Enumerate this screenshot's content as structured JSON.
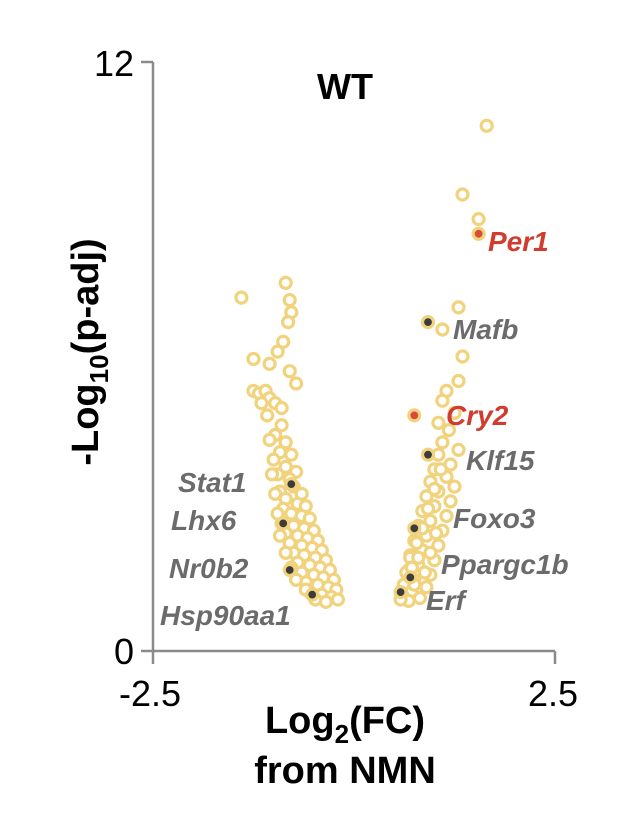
{
  "chart_data": {
    "type": "scatter",
    "title": "WT",
    "xlabel": {
      "main": "Log",
      "sub": "2",
      "suffix": "(FC)",
      "line2": "from NMN"
    },
    "ylabel": {
      "prefix": "-Log",
      "sub": "10",
      "suffix": "(p-adj)"
    },
    "xlim": [
      -2.5,
      2.5
    ],
    "ylim": [
      0,
      12
    ],
    "x_tick_labels": [
      "-2.5",
      "2.5"
    ],
    "y_tick_labels": [
      "0",
      "12"
    ],
    "grid": false,
    "colors": {
      "point_fill": "#ffffff",
      "point_stroke": "#f1d27d",
      "highlight_fill": "#3c3c3c",
      "highlight_red": "#d84a3a",
      "label_gray": "#6b6b6b",
      "label_red": "#d03c2f",
      "axis": "#8a8a8a"
    },
    "background_points": [
      [
        -1.4,
        7.2
      ],
      [
        -0.85,
        7.5
      ],
      [
        -0.8,
        7.15
      ],
      [
        -0.78,
        6.9
      ],
      [
        -0.82,
        6.7
      ],
      [
        -0.88,
        6.3
      ],
      [
        -0.95,
        6.1
      ],
      [
        -1.25,
        5.95
      ],
      [
        -1.05,
        5.85
      ],
      [
        -0.8,
        5.7
      ],
      [
        -0.72,
        5.45
      ],
      [
        -1.25,
        5.3
      ],
      [
        -1.18,
        5.25
      ],
      [
        -1.1,
        5.3
      ],
      [
        -1.05,
        5.15
      ],
      [
        -0.98,
        5.05
      ],
      [
        -0.9,
        4.95
      ],
      [
        -1.15,
        5.05
      ],
      [
        -1.08,
        4.8
      ],
      [
        -0.9,
        4.6
      ],
      [
        -0.98,
        4.4
      ],
      [
        -1.05,
        4.3
      ],
      [
        -0.85,
        4.25
      ],
      [
        -0.92,
        4.05
      ],
      [
        -0.78,
        4.0
      ],
      [
        -1.0,
        3.9
      ],
      [
        -0.85,
        3.75
      ],
      [
        -0.72,
        3.65
      ],
      [
        -0.95,
        3.6
      ],
      [
        -0.8,
        3.5
      ],
      [
        -0.75,
        3.35
      ],
      [
        -0.92,
        3.25
      ],
      [
        -0.65,
        3.2
      ],
      [
        -0.85,
        3.1
      ],
      [
        -0.7,
        3.0
      ],
      [
        -0.6,
        2.95
      ],
      [
        -0.88,
        2.9
      ],
      [
        -0.78,
        2.8
      ],
      [
        -0.65,
        2.75
      ],
      [
        -0.55,
        2.7
      ],
      [
        -0.9,
        2.6
      ],
      [
        -0.75,
        2.55
      ],
      [
        -0.62,
        2.5
      ],
      [
        -0.5,
        2.45
      ],
      [
        -0.85,
        2.4
      ],
      [
        -0.7,
        2.35
      ],
      [
        -0.58,
        2.3
      ],
      [
        -0.45,
        2.25
      ],
      [
        -0.8,
        2.2
      ],
      [
        -0.65,
        2.15
      ],
      [
        -0.52,
        2.1
      ],
      [
        -0.4,
        2.05
      ],
      [
        -0.75,
        2.0
      ],
      [
        -0.62,
        1.95
      ],
      [
        -0.48,
        1.9
      ],
      [
        -0.35,
        1.85
      ],
      [
        -0.7,
        1.8
      ],
      [
        -0.55,
        1.75
      ],
      [
        -0.42,
        1.7
      ],
      [
        -0.3,
        1.65
      ],
      [
        -0.65,
        1.6
      ],
      [
        -0.5,
        1.55
      ],
      [
        -0.38,
        1.5
      ],
      [
        -0.25,
        1.45
      ],
      [
        -0.6,
        1.4
      ],
      [
        -0.45,
        1.35
      ],
      [
        -0.32,
        1.3
      ],
      [
        -0.22,
        1.25
      ],
      [
        -0.55,
        1.2
      ],
      [
        -0.4,
        1.15
      ],
      [
        -0.28,
        1.1
      ],
      [
        -0.2,
        1.05
      ],
      [
        -0.35,
        1.0
      ],
      [
        -0.48,
        1.05
      ],
      [
        -0.6,
        1.25
      ],
      [
        -0.72,
        1.45
      ],
      [
        -0.78,
        1.7
      ],
      [
        -0.85,
        2.0
      ],
      [
        -0.92,
        2.35
      ],
      [
        -0.95,
        2.8
      ],
      [
        -0.98,
        3.2
      ],
      [
        -1.02,
        3.6
      ],
      [
        1.65,
        10.7
      ],
      [
        1.35,
        9.3
      ],
      [
        1.55,
        8.8
      ],
      [
        1.3,
        7.0
      ],
      [
        1.1,
        6.55
      ],
      [
        1.35,
        6.0
      ],
      [
        1.3,
        5.5
      ],
      [
        1.15,
        5.3
      ],
      [
        1.1,
        5.1
      ],
      [
        1.25,
        4.85
      ],
      [
        1.05,
        4.65
      ],
      [
        1.18,
        4.5
      ],
      [
        1.1,
        4.25
      ],
      [
        1.3,
        4.1
      ],
      [
        1.05,
        4.0
      ],
      [
        1.2,
        3.8
      ],
      [
        1.0,
        3.7
      ],
      [
        1.15,
        3.55
      ],
      [
        0.95,
        3.45
      ],
      [
        1.25,
        3.35
      ],
      [
        1.05,
        3.25
      ],
      [
        0.9,
        3.15
      ],
      [
        1.2,
        3.05
      ],
      [
        1.0,
        2.95
      ],
      [
        0.85,
        2.85
      ],
      [
        1.15,
        2.75
      ],
      [
        0.95,
        2.65
      ],
      [
        0.8,
        2.55
      ],
      [
        1.1,
        2.45
      ],
      [
        0.9,
        2.35
      ],
      [
        0.75,
        2.25
      ],
      [
        1.05,
        2.15
      ],
      [
        0.85,
        2.05
      ],
      [
        0.7,
        1.95
      ],
      [
        1.0,
        1.85
      ],
      [
        0.8,
        1.75
      ],
      [
        0.68,
        1.65
      ],
      [
        0.95,
        1.55
      ],
      [
        0.75,
        1.45
      ],
      [
        0.62,
        1.35
      ],
      [
        0.9,
        1.3
      ],
      [
        0.72,
        1.22
      ],
      [
        0.6,
        1.15
      ],
      [
        0.82,
        1.08
      ],
      [
        0.68,
        1.02
      ],
      [
        0.58,
        1.05
      ],
      [
        0.75,
        1.35
      ],
      [
        0.65,
        1.6
      ],
      [
        0.7,
        1.9
      ],
      [
        0.78,
        2.2
      ],
      [
        0.85,
        2.5
      ],
      [
        0.92,
        2.9
      ],
      [
        1.0,
        3.3
      ],
      [
        1.08,
        3.7
      ],
      [
        0.88,
        1.6
      ],
      [
        0.95,
        2.0
      ],
      [
        1.02,
        2.4
      ],
      [
        0.8,
        1.9
      ],
      [
        0.72,
        1.7
      ]
    ],
    "highlighted_points": [
      {
        "gene": "Per1",
        "x": 1.55,
        "y": 8.5,
        "kind": "red"
      },
      {
        "gene": "Mafb",
        "x": 0.92,
        "y": 6.7,
        "kind": "gray"
      },
      {
        "gene": "Cry2",
        "x": 0.75,
        "y": 4.8,
        "kind": "red"
      },
      {
        "gene": "Klf15",
        "x": 0.92,
        "y": 4.0,
        "kind": "gray"
      },
      {
        "gene": "Stat1",
        "x": -0.78,
        "y": 3.4,
        "kind": "gray"
      },
      {
        "gene": "Foxo3",
        "x": 0.75,
        "y": 2.5,
        "kind": "gray"
      },
      {
        "gene": "Lhx6",
        "x": -0.88,
        "y": 2.6,
        "kind": "gray"
      },
      {
        "gene": "Nr0b2",
        "x": -0.8,
        "y": 1.65,
        "kind": "gray"
      },
      {
        "gene": "Ppargc1b",
        "x": 0.7,
        "y": 1.5,
        "kind": "gray"
      },
      {
        "gene": "Hsp90aa1",
        "x": -0.52,
        "y": 1.15,
        "kind": "gray"
      },
      {
        "gene": "Erf",
        "x": 0.58,
        "y": 1.2,
        "kind": "gray"
      }
    ],
    "gene_labels": [
      {
        "text": "Per1",
        "color": "red"
      },
      {
        "text": "Mafb",
        "color": "gray"
      },
      {
        "text": "Cry2",
        "color": "red"
      },
      {
        "text": "Klf15",
        "color": "gray"
      },
      {
        "text": "Stat1",
        "color": "gray"
      },
      {
        "text": "Foxo3",
        "color": "gray"
      },
      {
        "text": "Lhx6",
        "color": "gray"
      },
      {
        "text": "Ppargc1b",
        "color": "gray"
      },
      {
        "text": "Nr0b2",
        "color": "gray"
      },
      {
        "text": "Erf",
        "color": "gray"
      },
      {
        "text": "Hsp90aa1",
        "color": "gray"
      }
    ]
  }
}
